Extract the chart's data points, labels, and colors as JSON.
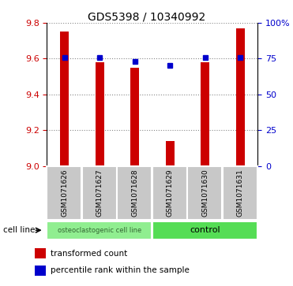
{
  "title": "GDS5398 / 10340992",
  "samples": [
    "GSM1071626",
    "GSM1071627",
    "GSM1071628",
    "GSM1071629",
    "GSM1071630",
    "GSM1071631"
  ],
  "red_values": [
    9.75,
    9.58,
    9.55,
    9.14,
    9.58,
    9.77
  ],
  "blue_values": [
    0.76,
    0.76,
    0.73,
    0.7,
    0.76,
    0.76
  ],
  "ylim_left": [
    9.0,
    9.8
  ],
  "ylim_right": [
    0,
    1.0
  ],
  "yticks_left": [
    9.0,
    9.2,
    9.4,
    9.6,
    9.8
  ],
  "yticks_right": [
    0,
    0.25,
    0.5,
    0.75,
    1.0
  ],
  "ytick_labels_right": [
    "0",
    "25",
    "50",
    "75",
    "100%"
  ],
  "left_tick_color": "#CC0000",
  "right_tick_color": "#0000CC",
  "bar_color": "#CC0000",
  "dot_color": "#0000CC",
  "grid_color": "#888888",
  "bg_plot": "#FFFFFF",
  "bg_label_row": "#C8C8C8",
  "bg_group_row1": "#90EE90",
  "bg_group_row2": "#55DD55",
  "figsize": [
    3.71,
    3.63
  ],
  "dpi": 100
}
